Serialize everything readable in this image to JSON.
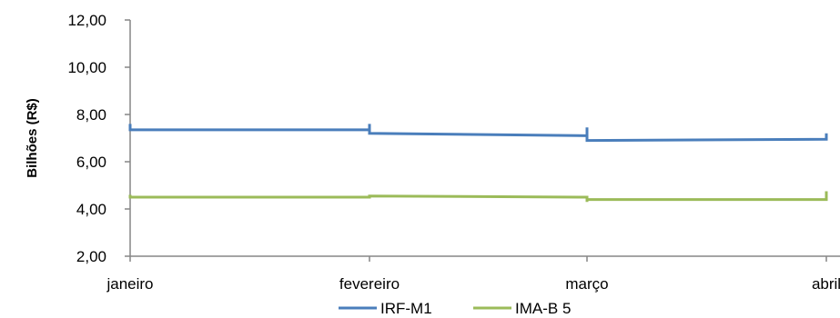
{
  "chart_data": {
    "type": "line",
    "title": "",
    "xlabel": "",
    "ylabel": "Bilhões (R$)",
    "categories": [
      "janeiro",
      "fevereiro",
      "março",
      "abril"
    ],
    "ylim": [
      2,
      12
    ],
    "yticks": [
      "2,00",
      "4,00",
      "6,00",
      "8,00",
      "10,00",
      "12,00"
    ],
    "grid": false,
    "legend": "bottom",
    "series": [
      {
        "name": "IRF-M1",
        "color": "#4A7EBB",
        "points": [
          {
            "month": 0,
            "y": 7.6
          },
          {
            "month": 0,
            "y": 7.35
          },
          {
            "month": 1,
            "y": 7.35
          },
          {
            "month": 1,
            "y": 7.6
          },
          {
            "month": 1,
            "y": 7.2
          },
          {
            "month": 2,
            "y": 7.1
          },
          {
            "month": 2,
            "y": 7.45
          },
          {
            "month": 2,
            "y": 6.9
          },
          {
            "month": 3,
            "y": 6.95
          },
          {
            "month": 3,
            "y": 7.2
          }
        ]
      },
      {
        "name": "IMA-B 5",
        "color": "#9BBB59",
        "points": [
          {
            "month": 0,
            "y": 4.6
          },
          {
            "month": 0,
            "y": 4.5
          },
          {
            "month": 1,
            "y": 4.5
          },
          {
            "month": 1,
            "y": 4.55
          },
          {
            "month": 2,
            "y": 4.5
          },
          {
            "month": 2,
            "y": 4.3
          },
          {
            "month": 2,
            "y": 4.4
          },
          {
            "month": 3,
            "y": 4.4
          },
          {
            "month": 3,
            "y": 4.75
          }
        ]
      }
    ]
  }
}
